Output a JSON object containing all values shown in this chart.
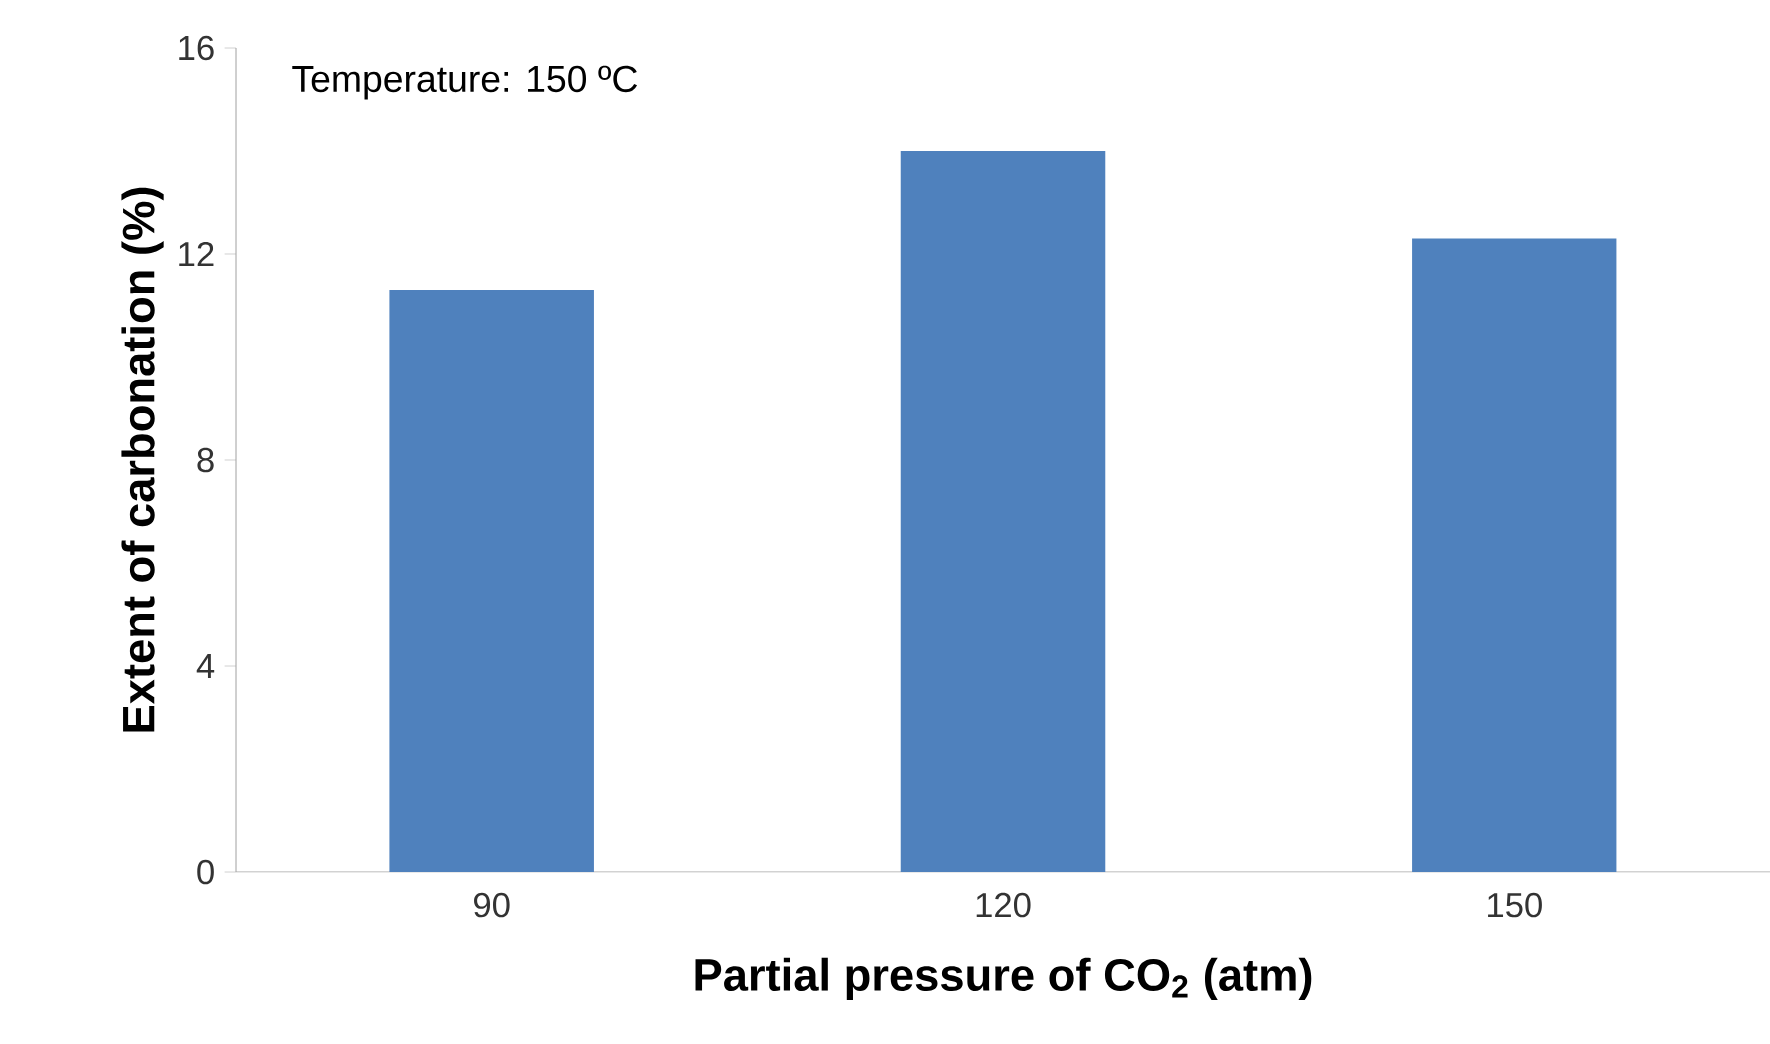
{
  "chart_data": {
    "type": "bar",
    "categories": [
      "90",
      "120",
      "150"
    ],
    "values": [
      11.3,
      14.0,
      12.3
    ],
    "color": "#4f81bd",
    "xlabel": "Partial pressure of CO$_{2}$ (atm)",
    "ylabel": "Extent of carbonation (%)",
    "ylim": [
      0,
      16
    ],
    "yticks": [
      0,
      4,
      8,
      12,
      16
    ],
    "annotations": [
      "Temperature: 150 ºC"
    ],
    "grid": false
  }
}
